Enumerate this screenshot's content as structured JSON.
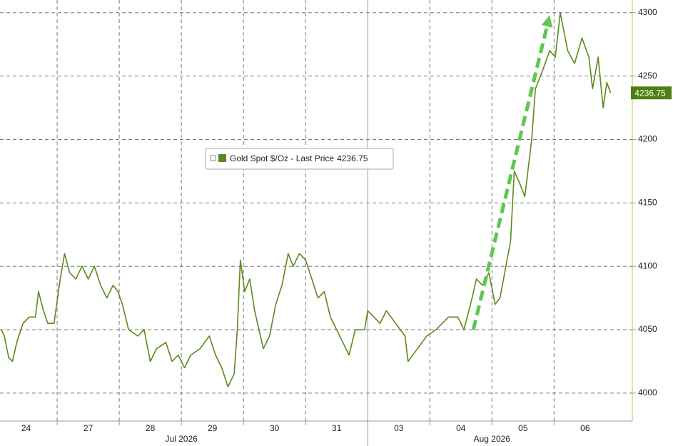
{
  "chart_data": {
    "type": "line",
    "series": [
      {
        "name": "Gold Spot $/Oz - Last Price",
        "color": "#5a8a1c",
        "x": [
          0.1,
          0.15,
          0.22,
          0.28,
          0.35,
          0.45,
          0.55,
          0.65,
          0.7,
          0.78,
          0.85,
          0.95,
          1.05,
          1.12,
          1.2,
          1.3,
          1.4,
          1.5,
          1.6,
          1.7,
          1.8,
          1.9,
          1.98,
          2.05,
          2.15,
          2.3,
          2.4,
          2.5,
          2.6,
          2.75,
          2.85,
          2.95,
          3.05,
          3.15,
          3.3,
          3.45,
          3.55,
          3.65,
          3.75,
          3.85,
          3.9,
          3.95,
          4.02,
          4.1,
          4.18,
          4.25,
          4.32,
          4.42,
          4.52,
          4.62,
          4.72,
          4.8,
          4.9,
          5.0,
          5.1,
          5.2,
          5.3,
          5.4,
          5.5,
          5.6,
          5.7,
          5.8,
          5.95,
          6.0,
          6.2,
          6.3,
          6.45,
          6.6,
          6.65,
          6.8,
          6.95,
          7.1,
          7.3,
          7.45,
          7.55,
          7.68,
          7.75,
          7.85,
          7.95,
          8.05,
          8.13,
          8.3,
          8.36,
          8.45,
          8.53,
          8.64,
          8.7,
          8.82,
          8.93,
          9.02,
          9.1,
          9.22,
          9.33,
          9.45,
          9.56,
          9.62,
          9.71,
          9.79,
          9.85,
          9.91
        ],
        "values": [
          4050,
          4045,
          4028,
          4025,
          4040,
          4055,
          4060,
          4060,
          4080,
          4065,
          4055,
          4055,
          4090,
          4110,
          4095,
          4090,
          4100,
          4090,
          4100,
          4085,
          4075,
          4085,
          4080,
          4070,
          4050,
          4045,
          4050,
          4025,
          4035,
          4040,
          4025,
          4030,
          4020,
          4030,
          4035,
          4045,
          4030,
          4020,
          4005,
          4015,
          4050,
          4105,
          4080,
          4090,
          4065,
          4050,
          4035,
          4045,
          4070,
          4085,
          4110,
          4100,
          4110,
          4105,
          4090,
          4075,
          4080,
          4060,
          4050,
          4040,
          4030,
          4050,
          4050,
          4065,
          4055,
          4065,
          4055,
          4045,
          4025,
          4035,
          4045,
          4050,
          4060,
          4060,
          4050,
          4075,
          4090,
          4085,
          4095,
          4070,
          4075,
          4120,
          4175,
          4165,
          4155,
          4200,
          4240,
          4255,
          4270,
          4265,
          4300,
          4270,
          4260,
          4280,
          4265,
          4240,
          4265,
          4225,
          4245,
          4236.75
        ]
      }
    ],
    "last_price": 4236.75,
    "xlim": [
      0.08,
      10.26
    ],
    "xticks": [
      {
        "value": 0.5,
        "label": "24"
      },
      {
        "value": 1.5,
        "label": "27"
      },
      {
        "value": 2.5,
        "label": "28"
      },
      {
        "value": 3.5,
        "label": "29"
      },
      {
        "value": 4.5,
        "label": "30"
      },
      {
        "value": 5.5,
        "label": "31"
      },
      {
        "value": 6.5,
        "label": "03"
      },
      {
        "value": 7.5,
        "label": "04"
      },
      {
        "value": 8.5,
        "label": "05"
      },
      {
        "value": 9.5,
        "label": "06"
      }
    ],
    "x_gridlines": [
      1,
      2,
      3,
      4,
      5,
      7,
      8,
      9
    ],
    "month_separator": 6,
    "month_labels": [
      {
        "value": 3,
        "label": "Jul 2026"
      },
      {
        "value": 8,
        "label": "Aug 2026"
      }
    ],
    "ylim": [
      3978,
      4310
    ],
    "yticks": [
      4000,
      4050,
      4100,
      4150,
      4200,
      4250,
      4300
    ],
    "grid": true,
    "arrow": {
      "x": [
        7.7,
        8.93
      ],
      "y": [
        4050,
        4298
      ],
      "color": "#5ec74f"
    }
  }
}
